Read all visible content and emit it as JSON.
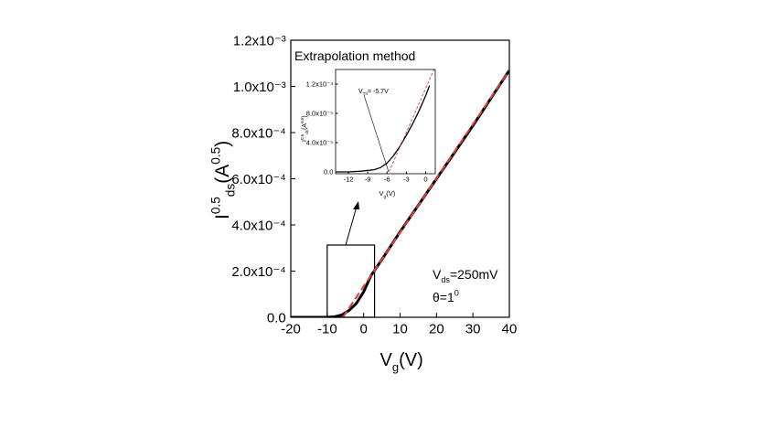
{
  "chart_data": [
    {
      "type": "line",
      "xlabel": [
        "V",
        "g",
        "(V)"
      ],
      "ylabel": [
        "I",
        "0.5",
        "ds",
        "(A",
        "0.5",
        ")"
      ],
      "xlim": [
        -20,
        40
      ],
      "xticks": [
        -20,
        -10,
        0,
        10,
        20,
        30,
        40
      ],
      "ylim": [
        0,
        0.0012
      ],
      "yticks": [
        {
          "value": 0,
          "label": "0.0"
        },
        {
          "value": 0.0002,
          "label": "2.0x10⁻⁴"
        },
        {
          "value": 0.0004,
          "label": "4.0x10⁻⁴"
        },
        {
          "value": 0.0006,
          "label": "6.0x10⁻⁴"
        },
        {
          "value": 0.0008,
          "label": "8.0x10⁻⁴"
        },
        {
          "value": 0.001,
          "label": "1.0x10⁻³"
        },
        {
          "value": 0.0012,
          "label": "1.2x10⁻³"
        }
      ],
      "series": [
        {
          "color": "#000000",
          "line_style": "solid",
          "x": [
            -20,
            -15,
            -10,
            -8,
            -6,
            -4,
            -2,
            0,
            2,
            5,
            10,
            20,
            30,
            40
          ],
          "values": [
            0,
            0,
            0,
            2e-06,
            1e-05,
            3e-05,
            6e-05,
            0.00011,
            0.00018,
            0.00025,
            0.00037,
            0.0006,
            0.00083,
            0.00107
          ]
        },
        {
          "color": "#e03c3c",
          "line_style": "dashed",
          "x": [
            -5.7,
            40
          ],
          "values": [
            0,
            0.00107
          ]
        }
      ],
      "inset_title": "Extrapolation method",
      "annotation": [
        "V",
        "ds",
        "=250mV"
      ],
      "annotation2": [
        "θ=1",
        "0"
      ]
    },
    {
      "type": "line",
      "xlabel": [
        "V",
        "g",
        "(V)"
      ],
      "ylabel": [
        "I",
        "0.5",
        "ds",
        "(A",
        "0.5",
        ")"
      ],
      "xlim": [
        -14,
        1.5
      ],
      "xticks": [
        -12,
        -9,
        -6,
        -3,
        0
      ],
      "ylim": [
        -2.5e-06,
        0.00014
      ],
      "yticks": [
        {
          "value": 0,
          "label": "0.0"
        },
        {
          "value": 4e-05,
          "label": "4.0x10⁻⁵"
        },
        {
          "value": 8e-05,
          "label": "8.0x10⁻⁵"
        },
        {
          "value": 0.00012,
          "label": "1.2x10⁻⁴"
        }
      ],
      "series": [
        {
          "color": "#000000",
          "line_style": "solid",
          "x": [
            -14,
            -12,
            -10,
            -8,
            -7,
            -6,
            -5,
            -4,
            -3,
            -2,
            -1,
            0,
            0.6
          ],
          "values": [
            0,
            0,
            1e-06,
            3e-06,
            6e-06,
            1.2e-05,
            2.2e-05,
            3.5e-05,
            5e-05,
            6.6e-05,
            8.4e-05,
            0.000104,
            0.000118
          ]
        },
        {
          "color": "#e03c3c",
          "line_style": "dashed",
          "x": [
            -5.7,
            1.3
          ],
          "values": [
            0,
            0.00014
          ]
        }
      ],
      "annotation": [
        "V",
        "Th",
        "= -5.7V"
      ]
    }
  ]
}
